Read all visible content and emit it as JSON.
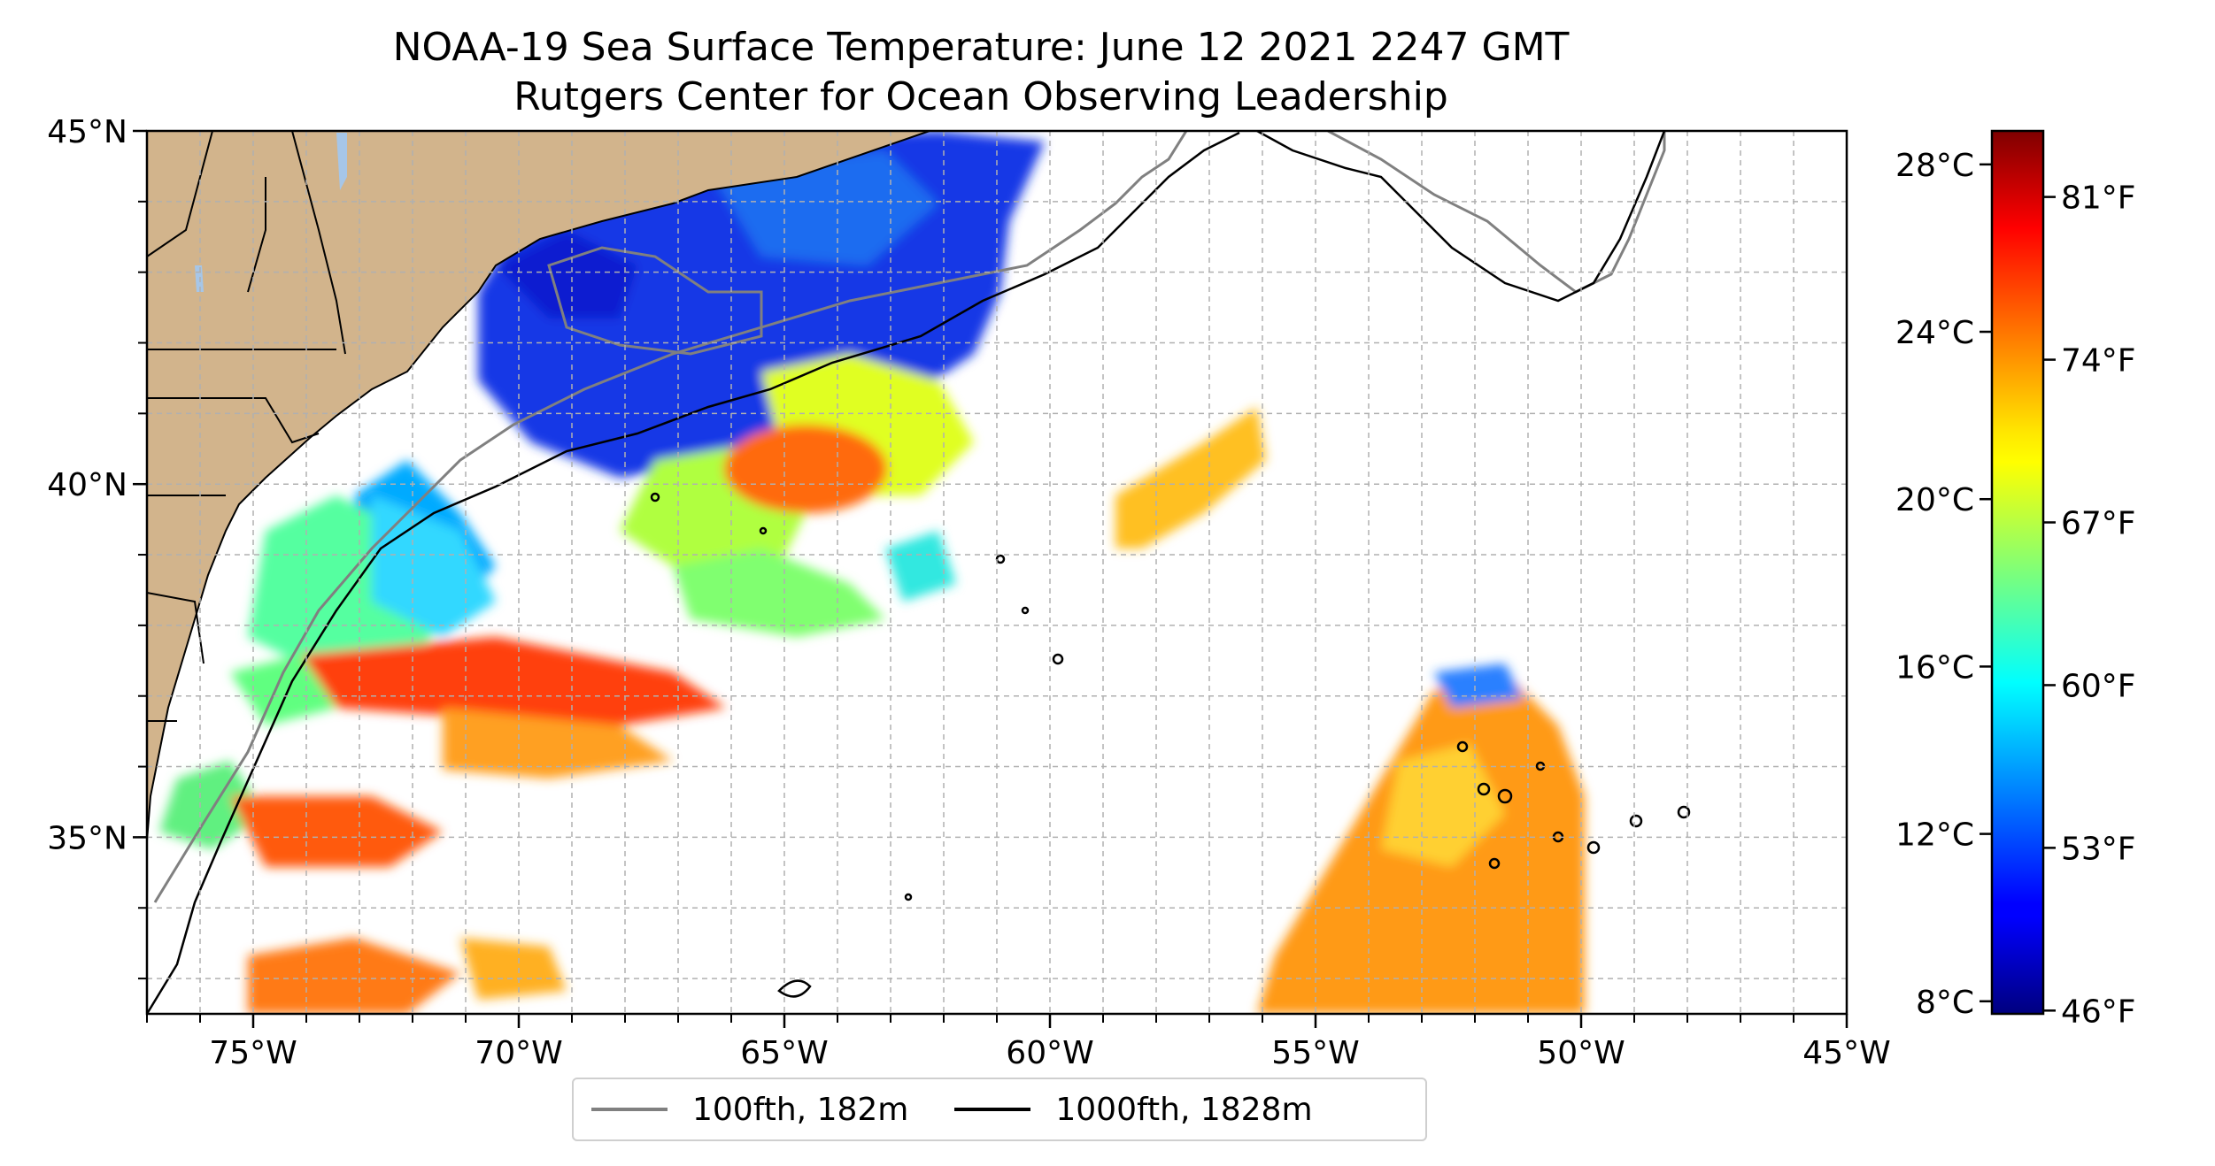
{
  "title": {
    "line1": "NOAA-19 Sea Surface Temperature: June 12 2021 2247 GMT",
    "line2": "Rutgers Center for Ocean Observing Leadership"
  },
  "map": {
    "extent": {
      "lon_min": -77,
      "lon_max": -45,
      "lat_min": 32.5,
      "lat_max": 45
    },
    "gridlines": "dashed gray, every 1 degree",
    "land_color": "#d2b48c",
    "lake_color": "#a6c6e8",
    "lat_ticks": [
      {
        "value": 45,
        "label": "45°N"
      },
      {
        "value": 40,
        "label": "40°N"
      },
      {
        "value": 35,
        "label": "35°N"
      }
    ],
    "lon_ticks": [
      {
        "value": -75,
        "label": "75°W"
      },
      {
        "value": -70,
        "label": "70°W"
      },
      {
        "value": -65,
        "label": "65°W"
      },
      {
        "value": -60,
        "label": "60°W"
      },
      {
        "value": -55,
        "label": "55°W"
      },
      {
        "value": -50,
        "label": "50°W"
      },
      {
        "value": -45,
        "label": "45°W"
      }
    ]
  },
  "colorbar": {
    "colormap": "jet",
    "celsius_range": [
      7.7,
      28.8
    ],
    "celsius_ticks": [
      {
        "value": 8,
        "label": "8°C"
      },
      {
        "value": 12,
        "label": "12°C"
      },
      {
        "value": 16,
        "label": "16°C"
      },
      {
        "value": 20,
        "label": "20°C"
      },
      {
        "value": 24,
        "label": "24°C"
      },
      {
        "value": 28,
        "label": "28°C"
      }
    ],
    "fahrenheit_ticks": [
      {
        "value": 46,
        "label": "46°F"
      },
      {
        "value": 53,
        "label": "53°F"
      },
      {
        "value": 60,
        "label": "60°F"
      },
      {
        "value": 67,
        "label": "67°F"
      },
      {
        "value": 74,
        "label": "74°F"
      },
      {
        "value": 81,
        "label": "81°F"
      }
    ]
  },
  "legend": {
    "entries": [
      {
        "label": "100fth, 182m",
        "color": "#808080"
      },
      {
        "label": "1000fth, 1828m",
        "color": "#000000"
      }
    ]
  }
}
